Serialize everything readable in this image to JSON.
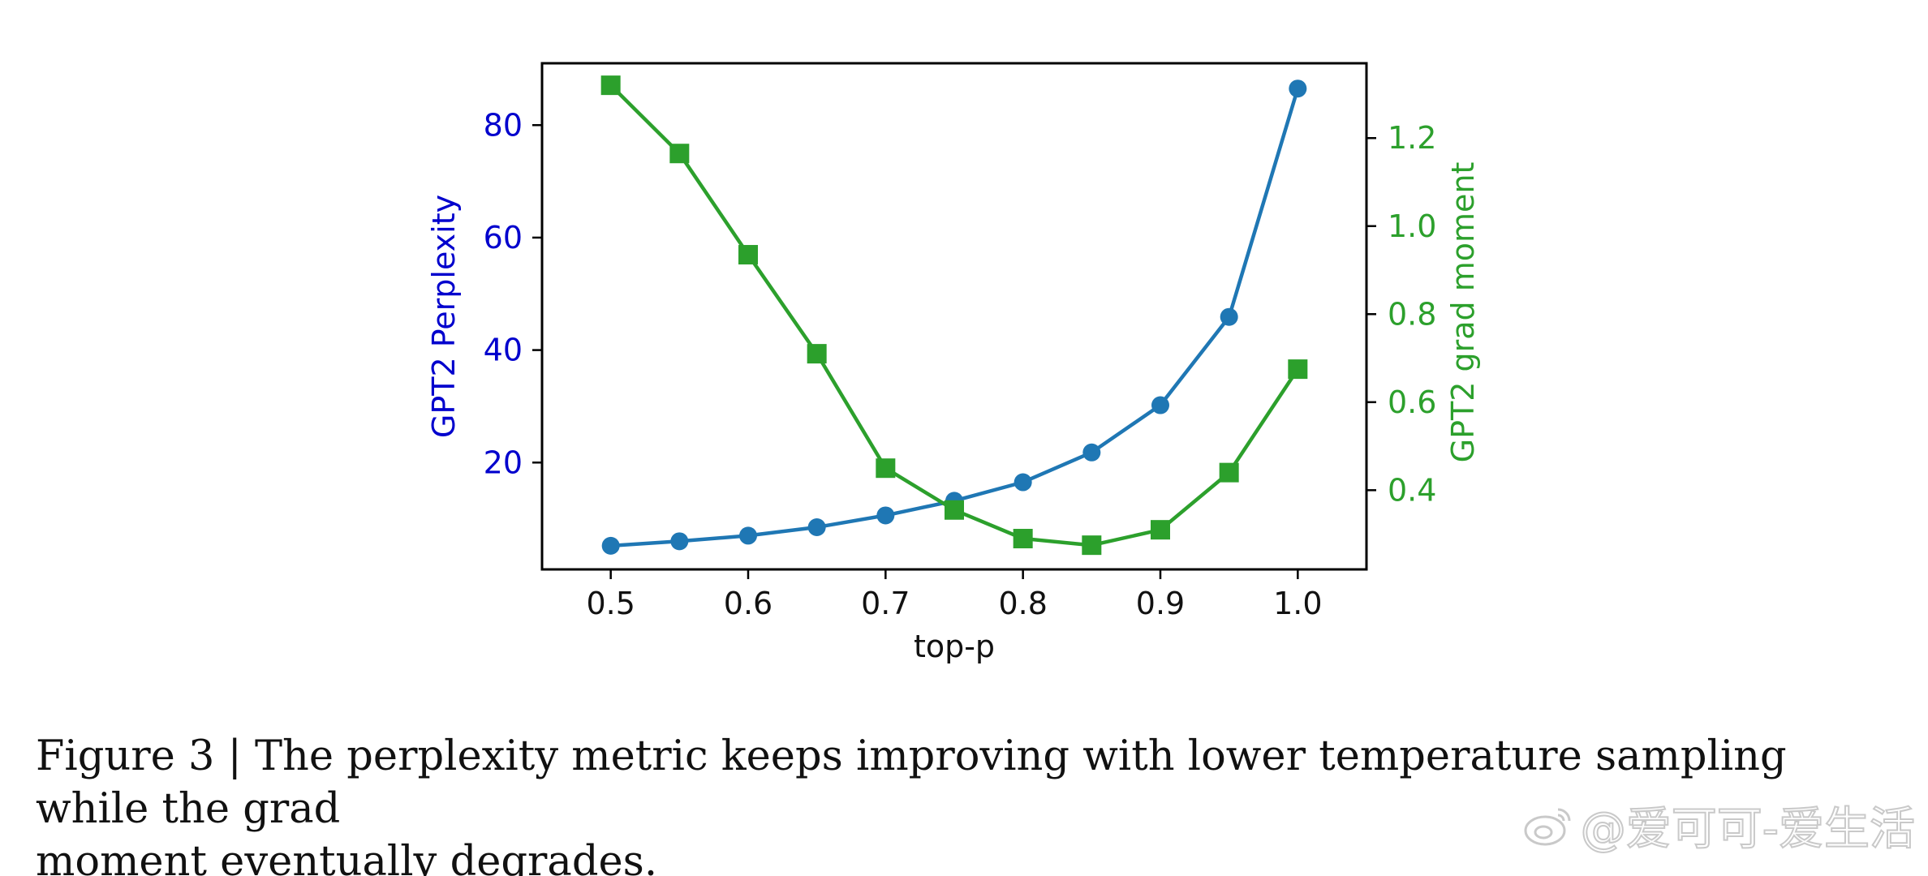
{
  "chart_data": {
    "type": "line",
    "xlabel": "top-p",
    "ylabel_left": "GPT2 Perplexity",
    "ylabel_right": "GPT2 grad moment",
    "xlim": [
      0.45,
      1.05
    ],
    "ylim_left": [
      1,
      91
    ],
    "ylim_right": [
      0.22,
      1.37
    ],
    "x": [
      0.5,
      0.55,
      0.6,
      0.65,
      0.7,
      0.75,
      0.8,
      0.85,
      0.9,
      0.95,
      1.0
    ],
    "x_ticks": [
      0.5,
      0.6,
      0.7,
      0.8,
      0.9,
      1.0
    ],
    "x_tick_labels": [
      "0.5",
      "0.6",
      "0.7",
      "0.8",
      "0.9",
      "1.0"
    ],
    "y_left_ticks": [
      20,
      40,
      60,
      80
    ],
    "y_left_tick_labels": [
      "20",
      "40",
      "60",
      "80"
    ],
    "y_right_ticks": [
      0.4,
      0.6,
      0.8,
      1.0,
      1.2
    ],
    "y_right_tick_labels": [
      "0.4",
      "0.6",
      "0.8",
      "1.0",
      "1.2"
    ],
    "series": [
      {
        "name": "GPT2 Perplexity",
        "axis": "left",
        "marker": "circle",
        "color": "#1f77b4",
        "values": [
          5.2,
          6.0,
          7.0,
          8.5,
          10.6,
          13.2,
          16.5,
          21.8,
          30.2,
          45.9,
          86.5
        ]
      },
      {
        "name": "GPT2 grad moment",
        "axis": "right",
        "marker": "square",
        "color": "#2ca02c",
        "values": [
          1.32,
          1.165,
          0.935,
          0.71,
          0.45,
          0.355,
          0.29,
          0.275,
          0.31,
          0.44,
          0.675
        ]
      }
    ],
    "left_axis_color": "#0000cd",
    "right_axis_color": "#2ca02c",
    "grid": false
  },
  "caption": {
    "line1": "Figure 3 | The perplexity metric keeps improving with lower temperature sampling while the grad",
    "line2": "moment eventually degrades."
  },
  "watermark": {
    "text": "@爱可可-爱生活"
  }
}
